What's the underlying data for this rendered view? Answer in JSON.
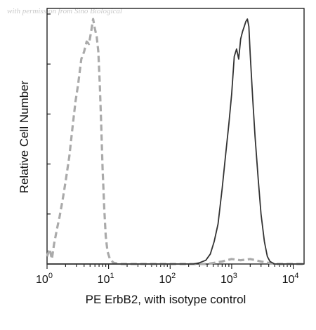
{
  "watermark": "with permission from Sino Biological",
  "chart_data": {
    "type": "line",
    "xlabel": "PE ErbB2, with isotype control",
    "ylabel": "Relative Cell Number",
    "xscale": "log",
    "xlim": [
      1,
      15000
    ],
    "ylim": [
      0,
      1
    ],
    "xticks": [
      {
        "base": "10",
        "exp": "0"
      },
      {
        "base": "10",
        "exp": "1"
      },
      {
        "base": "10",
        "exp": "2"
      },
      {
        "base": "10",
        "exp": "3"
      },
      {
        "base": "10",
        "exp": "4"
      }
    ],
    "grid": false,
    "series": [
      {
        "style": "dashed",
        "color": "#aaaaaa",
        "points": [
          [
            1.0,
            0.03
          ],
          [
            1.1,
            0.06
          ],
          [
            1.2,
            0.02
          ],
          [
            1.3,
            0.08
          ],
          [
            1.45,
            0.14
          ],
          [
            1.6,
            0.19
          ],
          [
            1.8,
            0.26
          ],
          [
            2.0,
            0.33
          ],
          [
            2.3,
            0.43
          ],
          [
            2.6,
            0.55
          ],
          [
            2.9,
            0.65
          ],
          [
            3.2,
            0.72
          ],
          [
            3.6,
            0.82
          ],
          [
            4.0,
            0.85
          ],
          [
            4.4,
            0.89
          ],
          [
            4.8,
            0.88
          ],
          [
            5.2,
            0.93
          ],
          [
            5.6,
            0.98
          ],
          [
            6.0,
            0.94
          ],
          [
            6.4,
            0.91
          ],
          [
            6.8,
            0.85
          ],
          [
            7.2,
            0.72
          ],
          [
            7.6,
            0.55
          ],
          [
            8.0,
            0.38
          ],
          [
            8.5,
            0.22
          ],
          [
            9.0,
            0.11
          ],
          [
            9.6,
            0.05
          ],
          [
            10.5,
            0.02
          ],
          [
            12.0,
            0.005
          ],
          [
            15.0,
            0.0
          ],
          [
            100,
            0.0
          ],
          [
            400,
            0.0
          ],
          [
            700,
            0.01
          ],
          [
            1000,
            0.02
          ],
          [
            1400,
            0.015
          ],
          [
            2000,
            0.02
          ],
          [
            3000,
            0.01
          ],
          [
            5000,
            0.0
          ],
          [
            15000,
            0.0
          ]
        ]
      },
      {
        "style": "solid",
        "color": "#333333",
        "points": [
          [
            1.0,
            0.0
          ],
          [
            100,
            0.0
          ],
          [
            240,
            0.0
          ],
          [
            300,
            0.005
          ],
          [
            380,
            0.015
          ],
          [
            450,
            0.04
          ],
          [
            520,
            0.09
          ],
          [
            600,
            0.16
          ],
          [
            700,
            0.3
          ],
          [
            800,
            0.44
          ],
          [
            900,
            0.56
          ],
          [
            1000,
            0.68
          ],
          [
            1100,
            0.83
          ],
          [
            1200,
            0.86
          ],
          [
            1300,
            0.82
          ],
          [
            1400,
            0.9
          ],
          [
            1500,
            0.93
          ],
          [
            1600,
            0.95
          ],
          [
            1700,
            0.97
          ],
          [
            1800,
            0.98
          ],
          [
            1900,
            0.95
          ],
          [
            2000,
            0.84
          ],
          [
            2200,
            0.66
          ],
          [
            2400,
            0.51
          ],
          [
            2700,
            0.34
          ],
          [
            3000,
            0.2
          ],
          [
            3400,
            0.09
          ],
          [
            3800,
            0.03
          ],
          [
            4200,
            0.01
          ],
          [
            5000,
            0.0
          ],
          [
            15000,
            0.0
          ]
        ]
      }
    ]
  }
}
